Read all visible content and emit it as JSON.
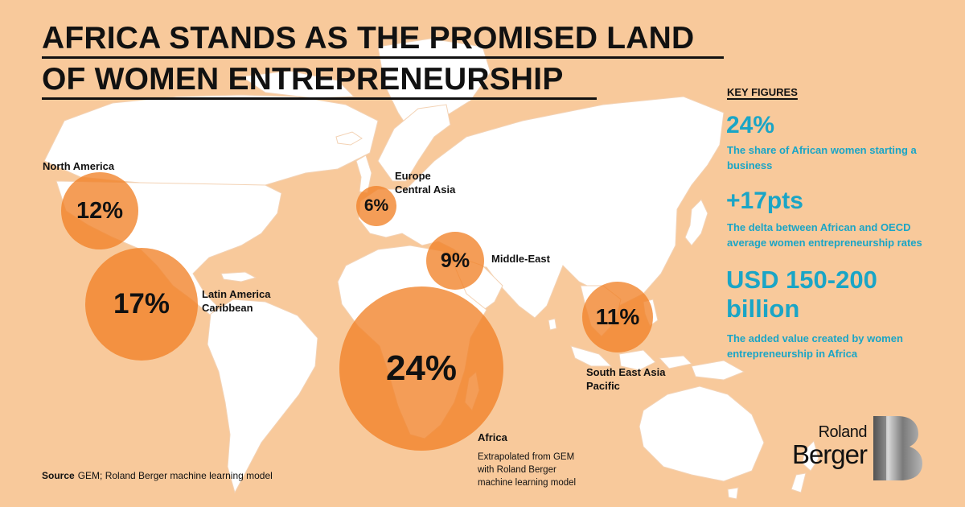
{
  "title": {
    "line1": "AFRICA STANDS AS THE PROMISED LAND",
    "line2": "OF WOMEN ENTREPRENEURSHIP"
  },
  "regions": [
    {
      "id": "north-america",
      "label": "North America",
      "value": "12%"
    },
    {
      "id": "latin-america",
      "label": "Latin America\nCaribbean",
      "value": "17%"
    },
    {
      "id": "europe",
      "label": "Europe\nCentral Asia",
      "value": "6%"
    },
    {
      "id": "middle-east",
      "label": "Middle-East",
      "value": "9%"
    },
    {
      "id": "africa",
      "label": "Africa",
      "value": "24%",
      "note": "Extrapolated from GEM\nwith Roland Berger\nmachine learning model"
    },
    {
      "id": "south-east-asia",
      "label": "South East Asia\nPacific",
      "value": "11%"
    }
  ],
  "key_figures": {
    "heading": "KEY FIGURES",
    "items": [
      {
        "value": "24%",
        "description": "The share of African women starting a business"
      },
      {
        "value": "+17pts",
        "description": "The delta between African and OECD average women entrepreneurship rates"
      },
      {
        "value": "USD 150-200\nbillion",
        "description": "The added value created by women entrepreneurship in Africa"
      }
    ]
  },
  "source": {
    "label": "Source",
    "text": "GEM; Roland Berger machine learning model"
  },
  "logo": {
    "line1": "Roland",
    "line2": "Berger",
    "mark": "B"
  },
  "colors": {
    "background": "#f8c99b",
    "land": "#ffffff",
    "bubble": "#f18228",
    "accent": "#1aa5c6",
    "text": "#111111"
  }
}
